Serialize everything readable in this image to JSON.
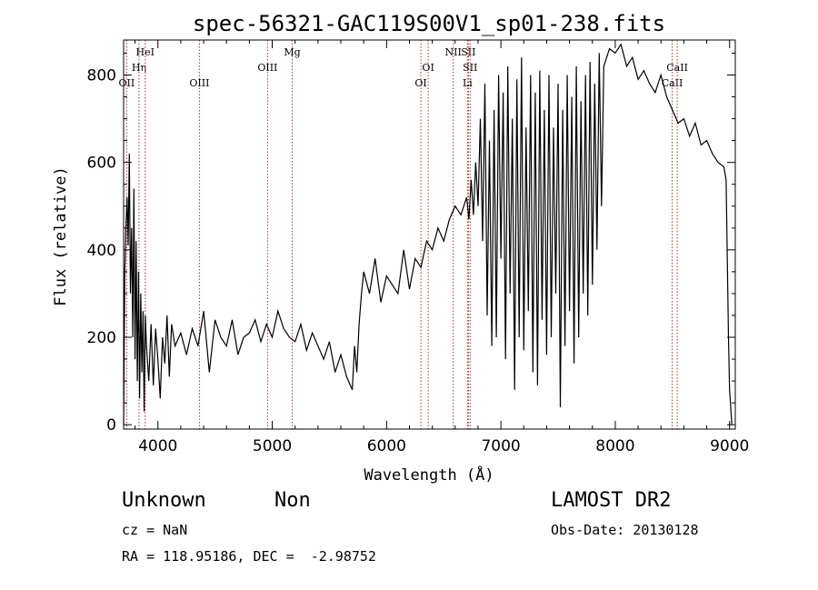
{
  "chart_data": {
    "type": "line",
    "title": "spec-56321-GAC119S00V1_sp01-238.fits",
    "xlabel": "Wavelength (Å)",
    "ylabel": "Flux (relative)",
    "xlim": [
      3700,
      9050
    ],
    "ylim": [
      -10,
      880
    ],
    "xticks": [
      4000,
      5000,
      6000,
      7000,
      8000,
      9000
    ],
    "yticks": [
      0,
      200,
      400,
      600,
      800
    ],
    "series": [
      {
        "color": "#000000",
        "x": [
          3700,
          3710,
          3720,
          3730,
          3740,
          3750,
          3760,
          3770,
          3780,
          3790,
          3800,
          3810,
          3820,
          3830,
          3840,
          3850,
          3860,
          3870,
          3880,
          3890,
          3900,
          3920,
          3940,
          3960,
          3980,
          4000,
          4020,
          4040,
          4060,
          4080,
          4100,
          4120,
          4150,
          4200,
          4250,
          4300,
          4350,
          4400,
          4450,
          4500,
          4550,
          4600,
          4650,
          4700,
          4750,
          4800,
          4850,
          4900,
          4950,
          5000,
          5050,
          5100,
          5150,
          5200,
          5250,
          5300,
          5350,
          5400,
          5450,
          5500,
          5550,
          5600,
          5650,
          5700,
          5720,
          5740,
          5760,
          5780,
          5800,
          5850,
          5900,
          5950,
          6000,
          6050,
          6100,
          6150,
          6200,
          6250,
          6300,
          6350,
          6400,
          6450,
          6500,
          6550,
          6600,
          6650,
          6700,
          6720,
          6740,
          6760,
          6780,
          6800,
          6820,
          6840,
          6860,
          6880,
          6900,
          6920,
          6940,
          6960,
          6980,
          7000,
          7020,
          7040,
          7060,
          7080,
          7100,
          7120,
          7140,
          7160,
          7180,
          7200,
          7220,
          7240,
          7260,
          7280,
          7300,
          7320,
          7340,
          7360,
          7380,
          7400,
          7420,
          7440,
          7460,
          7480,
          7500,
          7520,
          7540,
          7560,
          7580,
          7600,
          7620,
          7640,
          7660,
          7680,
          7700,
          7720,
          7740,
          7760,
          7780,
          7800,
          7820,
          7840,
          7860,
          7880,
          7900,
          7950,
          8000,
          8050,
          8100,
          8150,
          8200,
          8250,
          8300,
          8350,
          8400,
          8450,
          8500,
          8550,
          8600,
          8650,
          8700,
          8750,
          8800,
          8850,
          8900,
          8950,
          8970,
          8990,
          9000,
          9010,
          9020
        ],
        "y": [
          0,
          350,
          450,
          520,
          410,
          620,
          300,
          450,
          200,
          540,
          150,
          420,
          100,
          350,
          60,
          300,
          120,
          260,
          30,
          250,
          180,
          100,
          230,
          90,
          220,
          150,
          60,
          200,
          140,
          250,
          110,
          230,
          180,
          210,
          160,
          220,
          180,
          260,
          120,
          240,
          200,
          180,
          240,
          160,
          200,
          210,
          240,
          190,
          230,
          200,
          260,
          220,
          200,
          190,
          230,
          170,
          210,
          180,
          150,
          190,
          120,
          160,
          110,
          80,
          180,
          120,
          230,
          300,
          350,
          300,
          380,
          280,
          340,
          320,
          300,
          400,
          310,
          380,
          360,
          420,
          400,
          450,
          420,
          470,
          500,
          480,
          520,
          470,
          560,
          480,
          600,
          500,
          700,
          420,
          780,
          250,
          650,
          180,
          720,
          200,
          800,
          380,
          760,
          150,
          820,
          300,
          700,
          80,
          790,
          200,
          840,
          170,
          680,
          260,
          800,
          120,
          760,
          90,
          810,
          240,
          720,
          160,
          800,
          200,
          680,
          300,
          780,
          40,
          720,
          180,
          800,
          260,
          750,
          140,
          820,
          200,
          740,
          300,
          800,
          250,
          830,
          320,
          780,
          400,
          850,
          500,
          820,
          860,
          850,
          870,
          820,
          840,
          790,
          810,
          780,
          760,
          800,
          750,
          720,
          690,
          700,
          660,
          690,
          640,
          650,
          620,
          600,
          590,
          560,
          200,
          80,
          40,
          0
        ]
      }
    ],
    "line_markers": [
      {
        "label": "OII",
        "x": 3727,
        "row": 3
      },
      {
        "label": "Hη",
        "x": 3835,
        "row": 2
      },
      {
        "label": "HeI",
        "x": 3889,
        "row": 1
      },
      {
        "label": "OIII",
        "x": 4363,
        "row": 3
      },
      {
        "label": "OIII",
        "x": 4959,
        "row": 2
      },
      {
        "label": "Mg",
        "x": 5175,
        "row": 1
      },
      {
        "label": "OI",
        "x": 6300,
        "row": 3
      },
      {
        "label": "OI",
        "x": 6364,
        "row": 2
      },
      {
        "label": "NII",
        "x": 6583,
        "row": 1
      },
      {
        "label": "SII",
        "x": 6716,
        "row": 1
      },
      {
        "label": "SII",
        "x": 6731,
        "row": 2
      },
      {
        "label": "Li",
        "x": 6708,
        "row": 3
      },
      {
        "label": "CaII",
        "x": 8498,
        "row": 3
      },
      {
        "label": "CaII",
        "x": 8542,
        "row": 2
      }
    ]
  },
  "info": {
    "class": "Unknown",
    "subclass": "Non",
    "survey": "LAMOST DR2",
    "cz": "cz = NaN",
    "obs_date": "Obs-Date: 20130128",
    "radec": "RA = 118.95186, DEC =  -2.98752"
  }
}
